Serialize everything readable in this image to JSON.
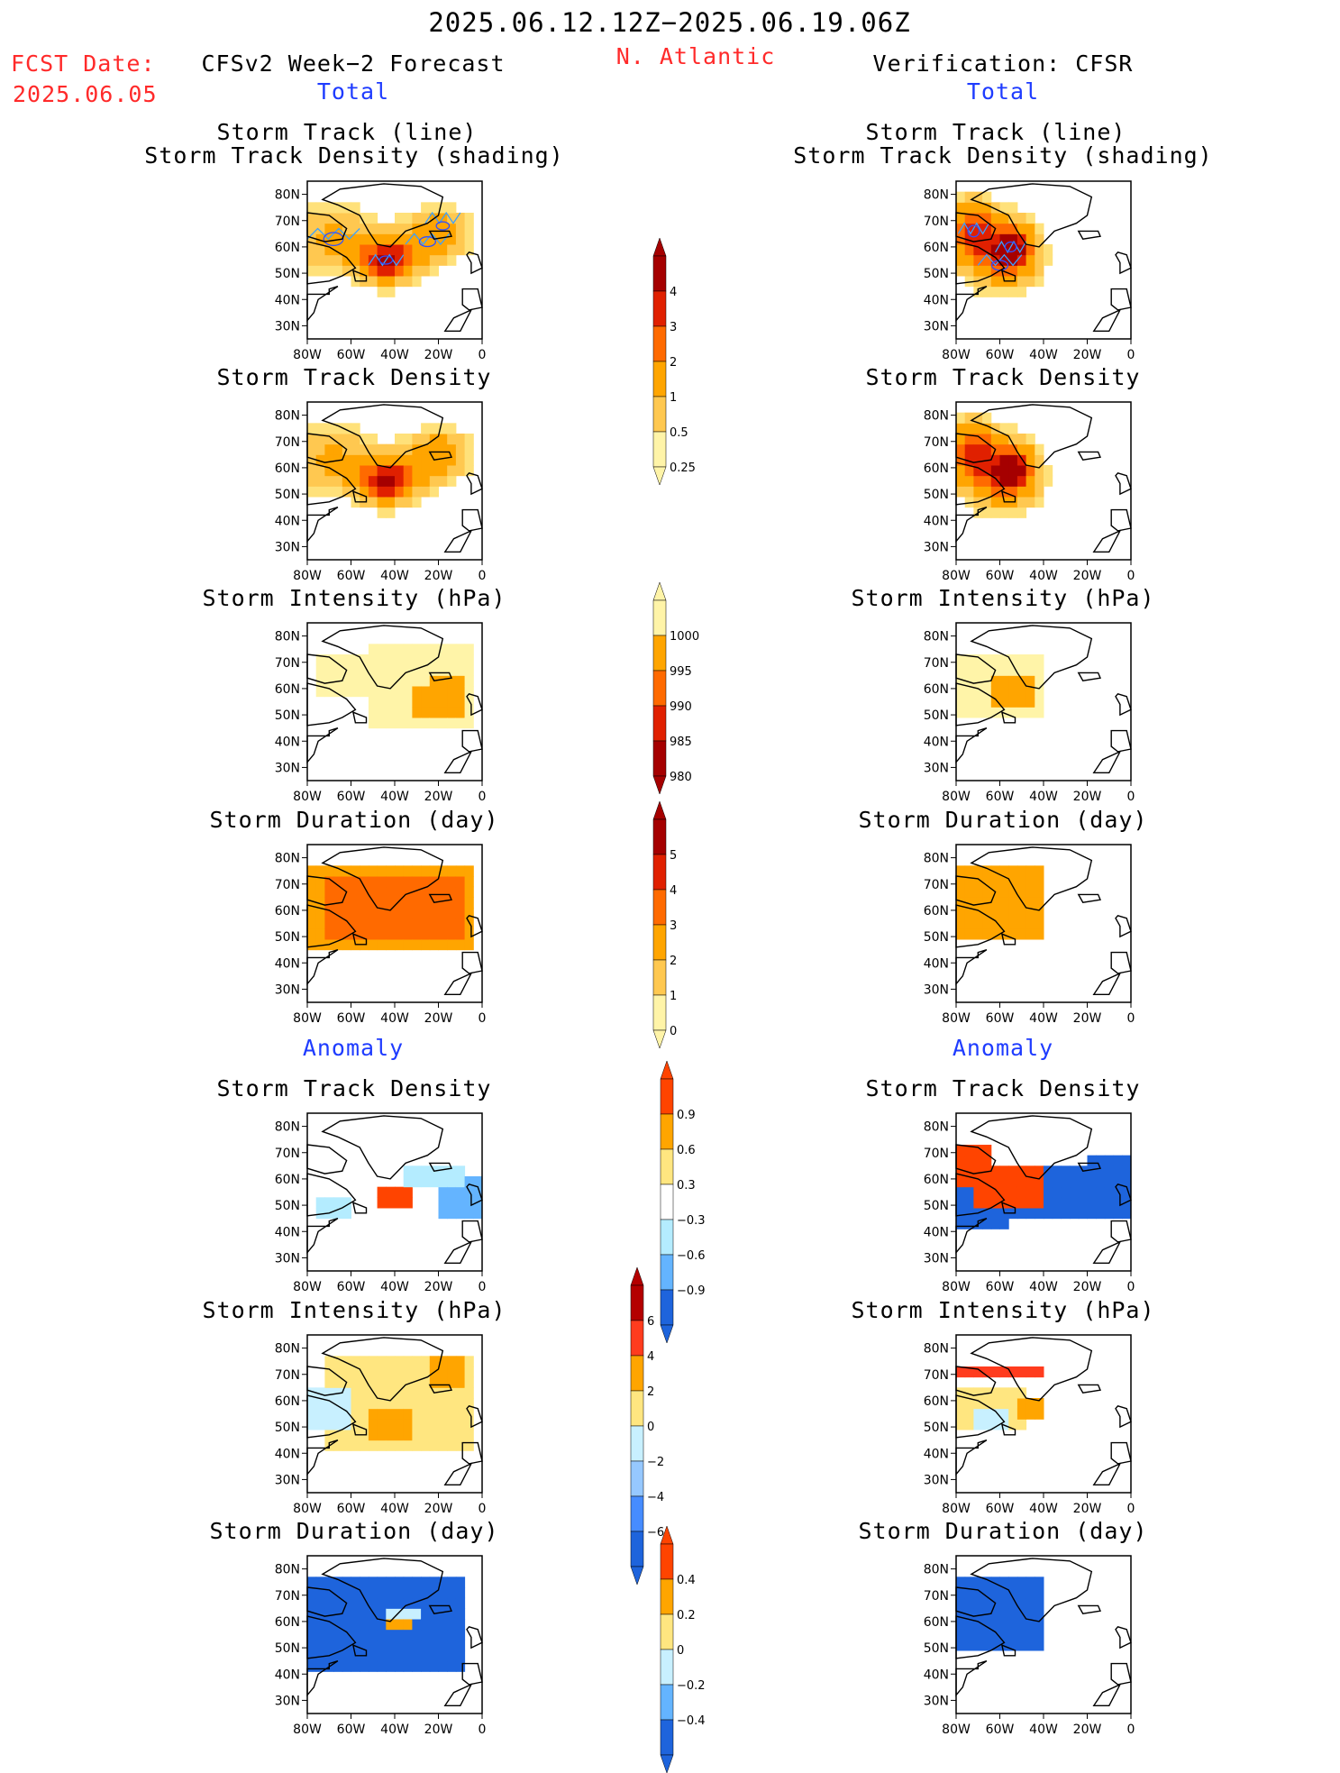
{
  "header": {
    "period": "2025.06.12.12Z−2025.06.19.06Z",
    "fcst_label": "FCST Date:",
    "fcst_date": "2025.06.05",
    "left_model": "CFSv2 Week−2 Forecast",
    "region": "N. Atlantic",
    "right_model": "Verification: CFSR",
    "section_total": "Total",
    "section_anomaly": "Anomaly"
  },
  "titles": {
    "track_line": "Storm Track (line)",
    "track_density_shading": "Storm Track Density (shading)",
    "track_density": "Storm Track Density",
    "intensity": "Storm Intensity (hPa)",
    "duration": "Storm Duration (day)"
  },
  "axes": {
    "lat_ticks": [
      "80N",
      "70N",
      "60N",
      "50N",
      "40N",
      "30N"
    ],
    "lon_ticks": [
      "80W",
      "60W",
      "40W",
      "20W",
      "0"
    ]
  },
  "chart_data": [
    {
      "type": "heatmap",
      "id": "fc_total_track",
      "title": "Storm Track (line) / Storm Track Density (shading)",
      "field": "total_density",
      "lon_range": [
        -80,
        0
      ],
      "lat_range": [
        25,
        85
      ],
      "blobs": [
        {
          "lon": -44,
          "lat": 55,
          "amp": 4.5,
          "sx": 8,
          "sy": 5
        },
        {
          "lon": -25,
          "lat": 62,
          "amp": 1.4,
          "sx": 10,
          "sy": 6
        },
        {
          "lon": -68,
          "lat": 63,
          "amp": 1.2,
          "sx": 12,
          "sy": 8
        },
        {
          "lon": -18,
          "lat": 68,
          "amp": 0.9,
          "sx": 8,
          "sy": 5
        }
      ],
      "track_lines": true
    },
    {
      "type": "heatmap",
      "id": "fc_total_density",
      "title": "Storm Track Density",
      "field": "total_density",
      "lon_range": [
        -80,
        0
      ],
      "lat_range": [
        25,
        85
      ],
      "blobs": [
        {
          "lon": -44,
          "lat": 55,
          "amp": 4.5,
          "sx": 8,
          "sy": 5
        },
        {
          "lon": -25,
          "lat": 62,
          "amp": 1.4,
          "sx": 10,
          "sy": 6
        },
        {
          "lon": -68,
          "lat": 63,
          "amp": 1.2,
          "sx": 12,
          "sy": 8
        },
        {
          "lon": -18,
          "lat": 68,
          "amp": 0.9,
          "sx": 8,
          "sy": 5
        }
      ]
    },
    {
      "type": "heatmap",
      "id": "fc_total_intensity",
      "title": "Storm Intensity (hPa)",
      "field": "total_intensity",
      "cells": [
        [
          "-76,-5,58,72",
          998
        ],
        [
          "-50,-5,45,75",
          998
        ],
        [
          "-30,-10,50,62",
          994
        ],
        [
          "-25,-8,55,65",
          993
        ]
      ]
    },
    {
      "type": "heatmap",
      "id": "fc_total_duration",
      "title": "Storm Duration (day)",
      "field": "total_duration",
      "cells": [
        [
          "-80,-5,45,78",
          1.5
        ],
        [
          "-70,-10,48,72",
          2.1
        ]
      ]
    },
    {
      "type": "heatmap",
      "id": "vf_total_track",
      "title": "Storm Track (line) / Storm Track Density (shading)",
      "field": "total_density",
      "blobs": [
        {
          "lon": -55,
          "lat": 60,
          "amp": 4.5,
          "sx": 7,
          "sy": 6
        },
        {
          "lon": -72,
          "lat": 66,
          "amp": 3.5,
          "sx": 7,
          "sy": 7
        },
        {
          "lon": -60,
          "lat": 53,
          "amp": 1.5,
          "sx": 10,
          "sy": 6
        }
      ],
      "track_lines": true
    },
    {
      "type": "heatmap",
      "id": "vf_total_density",
      "title": "Storm Track Density",
      "field": "total_density",
      "blobs": [
        {
          "lon": -55,
          "lat": 60,
          "amp": 4.5,
          "sx": 7,
          "sy": 6
        },
        {
          "lon": -72,
          "lat": 66,
          "amp": 3.5,
          "sx": 7,
          "sy": 7
        },
        {
          "lon": -60,
          "lat": 53,
          "amp": 1.5,
          "sx": 10,
          "sy": 6
        }
      ]
    },
    {
      "type": "heatmap",
      "id": "vf_total_intensity",
      "title": "Storm Intensity (hPa)",
      "field": "total_intensity",
      "cells": [
        [
          "-78,-42,48,72",
          998
        ],
        [
          "-65,-45,55,65",
          994
        ]
      ]
    },
    {
      "type": "heatmap",
      "id": "vf_total_duration",
      "title": "Storm Duration (day)",
      "field": "total_duration",
      "cells": [
        [
          "-78,-40,48,76",
          1.5
        ]
      ]
    },
    {
      "type": "heatmap",
      "id": "fc_anom_density",
      "title": "Storm Track Density",
      "field": "anom_density",
      "cells": [
        [
          "-48,-32,49,58",
          1.0
        ],
        [
          "-80,-62,58,76",
          -0.2
        ],
        [
          "-75,-60,44,52",
          -0.5
        ],
        [
          "-20,-2,44,62",
          -0.9
        ],
        [
          "-35,-10,56,64",
          -0.35
        ],
        [
          "-58,-45,60,68",
          -0.2
        ]
      ]
    },
    {
      "type": "heatmap",
      "id": "fc_anom_intensity",
      "title": "Storm Intensity (hPa)",
      "field": "anom_intensity",
      "cells": [
        [
          "-70,-5,40,78",
          1.5
        ],
        [
          "-50,-32,45,55",
          3.0
        ],
        [
          "-25,-10,65,75",
          2.5
        ],
        [
          "-78,-60,50,65",
          -1.0
        ]
      ]
    },
    {
      "type": "heatmap",
      "id": "fc_anom_duration",
      "title": "Storm Duration (day)",
      "field": "anom_duration",
      "cells": [
        [
          "-78,-8,42,78",
          -0.45
        ],
        [
          "-42,-32,58,65",
          0.3
        ],
        [
          "-45,-30,60,64",
          -0.15
        ]
      ]
    },
    {
      "type": "heatmap",
      "id": "vf_anom_density",
      "title": "Storm Track Density",
      "field": "anom_density",
      "cells": [
        [
          "-78,-2,40,70",
          -0.95
        ],
        [
          "-70,-42,50,66",
          1.0
        ],
        [
          "-78,-66,56,72",
          1.0
        ],
        [
          "-62,-20,66,72",
          -0.2
        ],
        [
          "-55,-2,38,45",
          -0.2
        ]
      ]
    },
    {
      "type": "heatmap",
      "id": "vf_anom_intensity",
      "title": "Storm Intensity (hPa)",
      "field": "anom_intensity",
      "cells": [
        [
          "-78,-42,68,72",
          4.5
        ],
        [
          "-78,-50,50,66",
          1.0
        ],
        [
          "-52,-40,52,60",
          3.0
        ],
        [
          "-70,-58,50,56",
          -1.0
        ]
      ]
    },
    {
      "type": "heatmap",
      "id": "vf_anom_duration",
      "title": "Storm Duration (day)",
      "field": "anom_duration",
      "cells": [
        [
          "-78,-40,48,76",
          -0.5
        ]
      ]
    }
  ],
  "colorbars": [
    {
      "id": "cb_density",
      "labels": [
        "4",
        "3",
        "2",
        "1",
        "0.5",
        "0.25"
      ],
      "colors": [
        "#a50000",
        "#e02000",
        "#ff6a00",
        "#ffa500",
        "#ffc850",
        "#fff4a8"
      ]
    },
    {
      "id": "cb_intensity",
      "labels": [
        "1000",
        "995",
        "990",
        "985",
        "980"
      ],
      "colors": [
        "#fff4a8",
        "#ffa500",
        "#ff6a00",
        "#e02000",
        "#a50000"
      ]
    },
    {
      "id": "cb_duration",
      "labels": [
        "5",
        "4",
        "3",
        "2",
        "1",
        "0"
      ],
      "colors": [
        "#a50000",
        "#e02000",
        "#ff6a00",
        "#ffa500",
        "#ffc850",
        "#fff4a8"
      ]
    },
    {
      "id": "cb_anom_density",
      "labels": [
        "0.9",
        "0.6",
        "0.3",
        "−0.3",
        "−0.6",
        "−0.9"
      ],
      "colors": [
        "#ff4400",
        "#ffa500",
        "#ffe680",
        "#ffffff",
        "#b4ecff",
        "#64b4ff",
        "#1e64dc"
      ]
    },
    {
      "id": "cb_anom_intensity",
      "labels": [
        "6",
        "4",
        "2",
        "0",
        "−2",
        "−4",
        "−6"
      ],
      "colors": [
        "#b40000",
        "#ff3c1e",
        "#ffa500",
        "#ffe680",
        "#c8f0ff",
        "#96c8ff",
        "#468cff",
        "#1e64dc"
      ]
    },
    {
      "id": "cb_anom_duration",
      "labels": [
        "0.4",
        "0.2",
        "0",
        "−0.2",
        "−0.4"
      ],
      "colors": [
        "#ff4400",
        "#ffa500",
        "#ffe680",
        "#c8f0ff",
        "#64b4ff",
        "#1e64dc"
      ]
    }
  ],
  "colors": {
    "red": "#ff2a2a",
    "blue": "#1f3cff",
    "track": "#3aa0ff"
  }
}
